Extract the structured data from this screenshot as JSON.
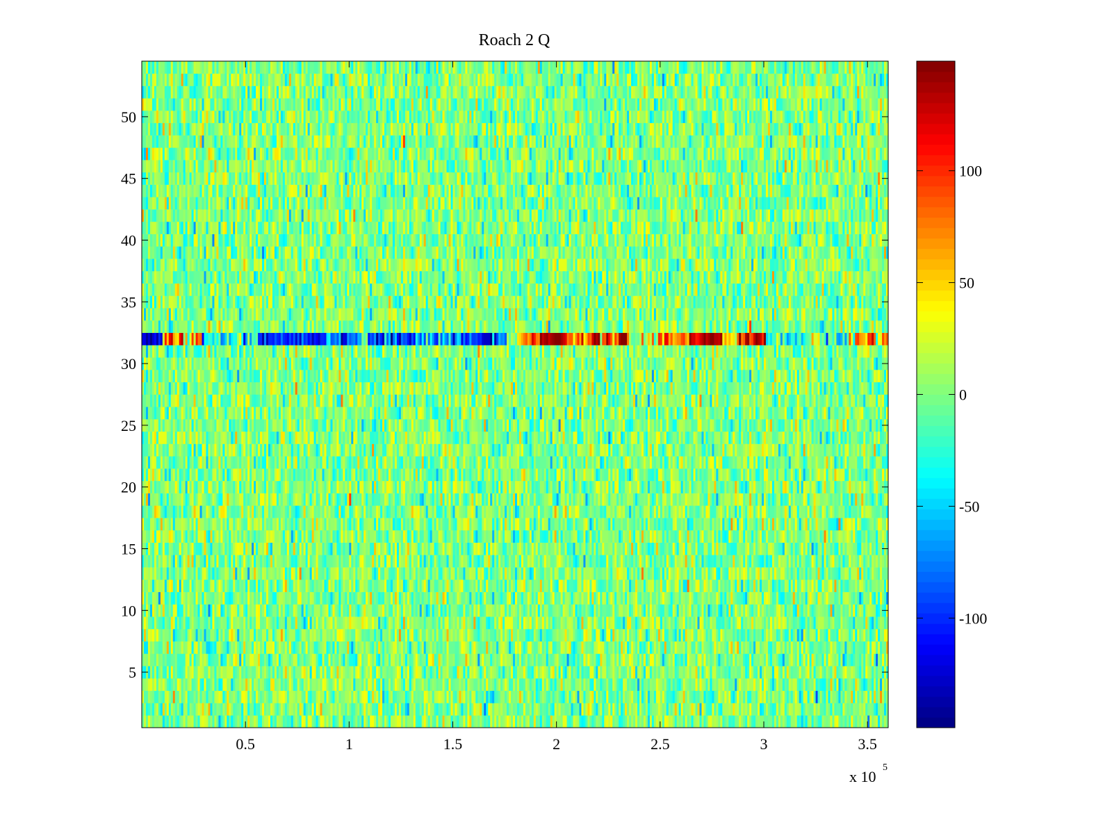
{
  "chart_data": {
    "type": "heatmap",
    "title": "Roach 2 Q",
    "xlabel": "",
    "ylabel": "",
    "x_exponent_label": "x 10",
    "x_exponent": "5",
    "xlim": [
      0,
      360000
    ],
    "ylim": [
      0.5,
      54.5
    ],
    "rows": 54,
    "columns": 360,
    "x_ticks": [
      50000,
      100000,
      150000,
      200000,
      250000,
      300000,
      350000
    ],
    "x_tick_labels": [
      "0.5",
      "1",
      "1.5",
      "2",
      "2.5",
      "3",
      "3.5"
    ],
    "y_ticks": [
      5,
      10,
      15,
      20,
      25,
      30,
      35,
      40,
      45,
      50
    ],
    "y_tick_labels": [
      "5",
      "10",
      "15",
      "20",
      "25",
      "30",
      "35",
      "40",
      "45",
      "50"
    ],
    "colormap": "jet",
    "clim": [
      -149,
      149
    ],
    "colorbar": {
      "location": "right",
      "ticks": [
        100,
        50,
        0,
        -50,
        -100
      ],
      "tick_labels": [
        "100",
        "50",
        "0",
        "-50",
        "-100"
      ]
    },
    "background_noise": {
      "mean": 0,
      "std": 22
    },
    "anomalous_row": {
      "row": 32,
      "segments": [
        {
          "x0": 0,
          "x1": 10400,
          "mean": -125,
          "std": 12
        },
        {
          "x0": 10400,
          "x1": 28900,
          "mean": 55,
          "std": 45
        },
        {
          "x0": 28900,
          "x1": 55700,
          "mean": -25,
          "std": 35
        },
        {
          "x0": 55700,
          "x1": 85900,
          "mean": -95,
          "std": 25
        },
        {
          "x0": 85900,
          "x1": 106000,
          "mean": -75,
          "std": 30
        },
        {
          "x0": 106000,
          "x1": 109000,
          "mean": 0,
          "std": 15
        },
        {
          "x0": 109000,
          "x1": 133000,
          "mean": -95,
          "std": 25
        },
        {
          "x0": 133000,
          "x1": 153000,
          "mean": -70,
          "std": 30
        },
        {
          "x0": 153000,
          "x1": 176500,
          "mean": -100,
          "std": 20
        },
        {
          "x0": 176500,
          "x1": 181500,
          "mean": 0,
          "std": 10
        },
        {
          "x0": 181500,
          "x1": 191600,
          "mean": 75,
          "std": 25
        },
        {
          "x0": 191600,
          "x1": 205000,
          "mean": 140,
          "std": 10
        },
        {
          "x0": 205000,
          "x1": 235000,
          "mean": 95,
          "std": 35
        },
        {
          "x0": 235000,
          "x1": 248700,
          "mean": 15,
          "std": 35
        },
        {
          "x0": 248700,
          "x1": 263800,
          "mean": 85,
          "std": 35
        },
        {
          "x0": 263800,
          "x1": 280500,
          "mean": 135,
          "std": 15
        },
        {
          "x0": 280500,
          "x1": 287000,
          "mean": 40,
          "std": 25
        },
        {
          "x0": 287000,
          "x1": 300700,
          "mean": 120,
          "std": 25
        },
        {
          "x0": 300700,
          "x1": 341000,
          "mean": -20,
          "std": 35
        },
        {
          "x0": 341000,
          "x1": 360000,
          "mean": 60,
          "std": 40
        }
      ]
    }
  }
}
